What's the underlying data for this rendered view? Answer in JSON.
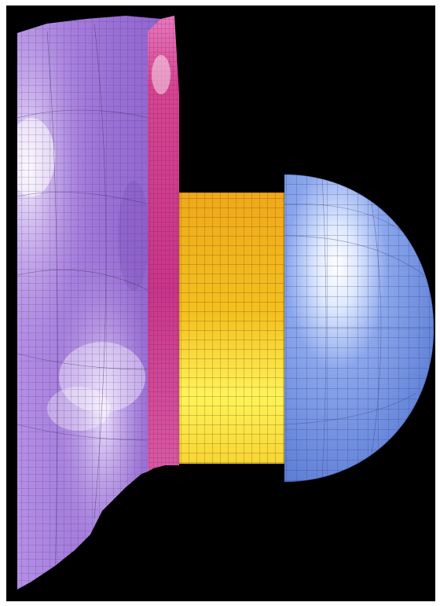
{
  "scene": {
    "background": "#000000",
    "frame": "#ffffff",
    "parts": [
      {
        "name": "plate",
        "color": "#9a6fd6",
        "highlight": "#f3ecff"
      },
      {
        "name": "plate-edge",
        "color": "#d8428f"
      },
      {
        "name": "cylinder",
        "color": "#f2b31a",
        "highlight": "#fff36a"
      },
      {
        "name": "dome",
        "color": "#6f8fe0",
        "highlight": "#ffffff"
      }
    ],
    "mesh_line": "#3a2a52"
  }
}
